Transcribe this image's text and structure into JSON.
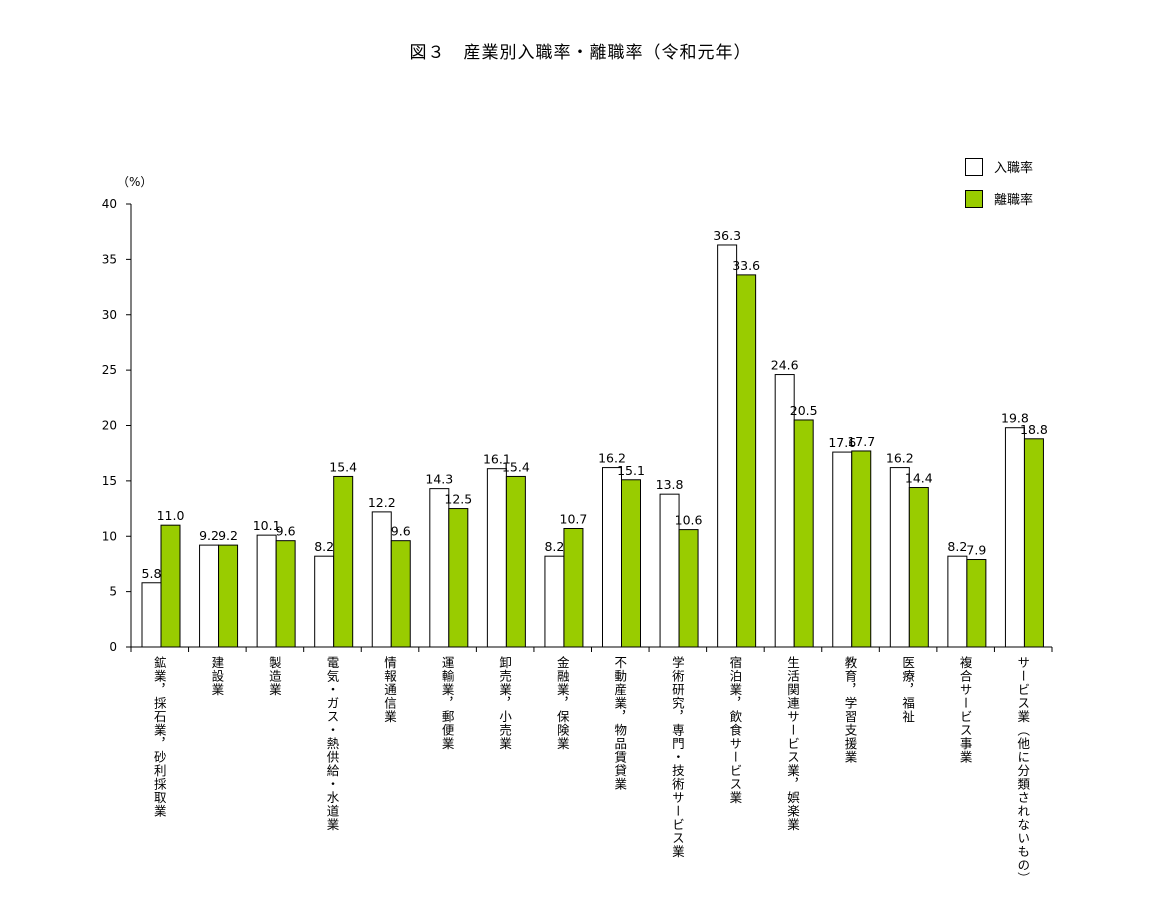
{
  "chart_data": {
    "type": "bar",
    "title": "図３　産業別入職率・離職率（令和元年）",
    "ylabel": "（%）",
    "xlabel": "",
    "ylim": [
      0,
      40
    ],
    "yticks": [
      "0",
      "5",
      "10",
      "15",
      "20",
      "25",
      "30",
      "35",
      "40"
    ],
    "legend_position": "top-right",
    "categories": [
      "鉱業，採石業，砂利採取業",
      "建設業",
      "製造業",
      "電気・ガス・熱供給・水道業",
      "情報通信業",
      "運輸業，郵便業",
      "卸売業，小売業",
      "金融業，保険業",
      "不動産業，物品賃貸業",
      "学術研究，専門・技術サービス業",
      "宿泊業，飲食サービス業",
      "生活関連サービス業，娯楽業",
      "教育，学習支援業",
      "医療，福祉",
      "複合サービス事業",
      "サービス業（他に分類されないもの）"
    ],
    "series": [
      {
        "name": "入職率",
        "color": "#ffffff",
        "values": [
          5.8,
          9.2,
          10.1,
          8.2,
          12.2,
          14.3,
          16.1,
          8.2,
          16.2,
          13.8,
          36.3,
          24.6,
          17.6,
          16.2,
          8.2,
          19.8
        ]
      },
      {
        "name": "離職率",
        "color": "#99cc00",
        "values": [
          11.0,
          9.2,
          9.6,
          15.4,
          9.6,
          12.5,
          15.4,
          10.7,
          15.1,
          10.6,
          33.6,
          20.5,
          17.7,
          14.4,
          7.9,
          18.8
        ]
      }
    ]
  }
}
